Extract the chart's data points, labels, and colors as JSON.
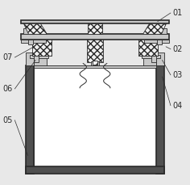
{
  "bg_color": "#e8e8e8",
  "line_color": "#2a2a2a",
  "fill_white": "#ffffff",
  "fill_light": "#f0f0f0",
  "fill_mid": "#c8c8c8",
  "fill_dark": "#505050",
  "label_color": "#2a2a2a",
  "label_fontsize": 7.0,
  "annotation_lw": 0.5,
  "main_lw": 1.2,
  "thin_lw": 0.6
}
